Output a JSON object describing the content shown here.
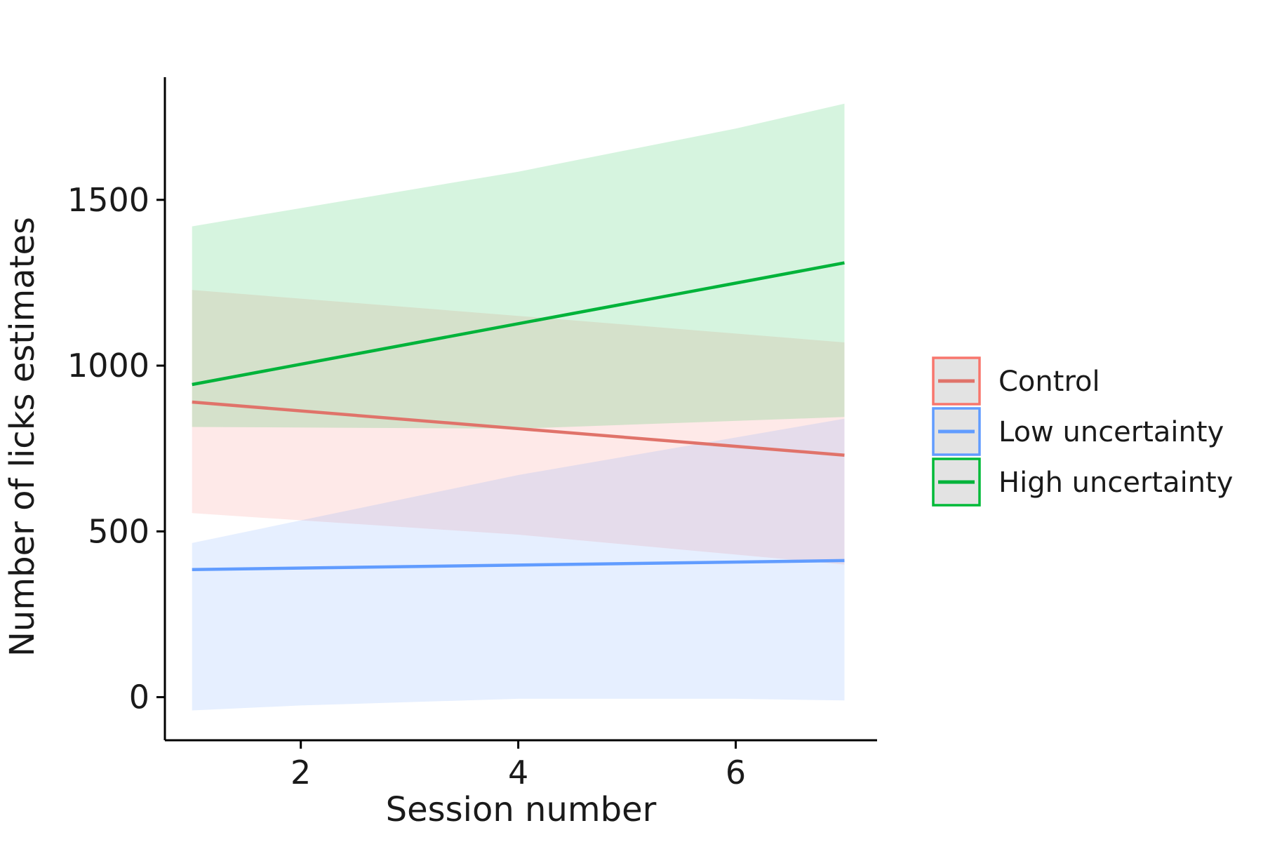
{
  "chart_data": {
    "type": "line",
    "title": "",
    "xlabel": "Session number",
    "ylabel": "Number of licks estimates",
    "xlim": [
      0.75,
      7.3
    ],
    "ylim": [
      -130,
      1870
    ],
    "x_ticks": [
      2,
      4,
      6
    ],
    "y_ticks": [
      0,
      500,
      1000,
      1500
    ],
    "x_tick_labels": [
      "2",
      "4",
      "6"
    ],
    "y_tick_labels": [
      "0",
      "500",
      "1000",
      "1500"
    ],
    "grid": false,
    "legend_position": "right",
    "series": [
      {
        "name": "Control",
        "color": "#F8766D",
        "line_color": "#E0736A",
        "x": [
          1,
          7
        ],
        "y": [
          890,
          730
        ],
        "band_lower": [
          {
            "x": 1,
            "y": 555
          },
          {
            "x": 4,
            "y": 490
          },
          {
            "x": 7,
            "y": 400
          }
        ],
        "band_upper": [
          {
            "x": 1,
            "y": 1228
          },
          {
            "x": 4,
            "y": 1150
          },
          {
            "x": 7,
            "y": 1070
          }
        ]
      },
      {
        "name": "Low uncertainty",
        "color": "#619CFF",
        "line_color": "#619CFF",
        "x": [
          1,
          7
        ],
        "y": [
          385,
          412
        ],
        "band_lower": [
          {
            "x": 1,
            "y": -40
          },
          {
            "x": 2,
            "y": -25
          },
          {
            "x": 4,
            "y": -5
          },
          {
            "x": 6,
            "y": -5
          },
          {
            "x": 7,
            "y": -10
          }
        ],
        "band_upper": [
          {
            "x": 1,
            "y": 465
          },
          {
            "x": 4,
            "y": 670
          },
          {
            "x": 7,
            "y": 840
          }
        ]
      },
      {
        "name": "High uncertainty",
        "color": "#00BA38",
        "line_color": "#00B33A",
        "x": [
          1,
          7
        ],
        "y": [
          943,
          1310
        ],
        "band_lower": [
          {
            "x": 1,
            "y": 815
          },
          {
            "x": 4,
            "y": 810
          },
          {
            "x": 7,
            "y": 845
          }
        ],
        "band_upper": [
          {
            "x": 1,
            "y": 1420
          },
          {
            "x": 2,
            "y": 1475
          },
          {
            "x": 4,
            "y": 1585
          },
          {
            "x": 6,
            "y": 1715
          },
          {
            "x": 7,
            "y": 1790
          }
        ]
      }
    ]
  }
}
